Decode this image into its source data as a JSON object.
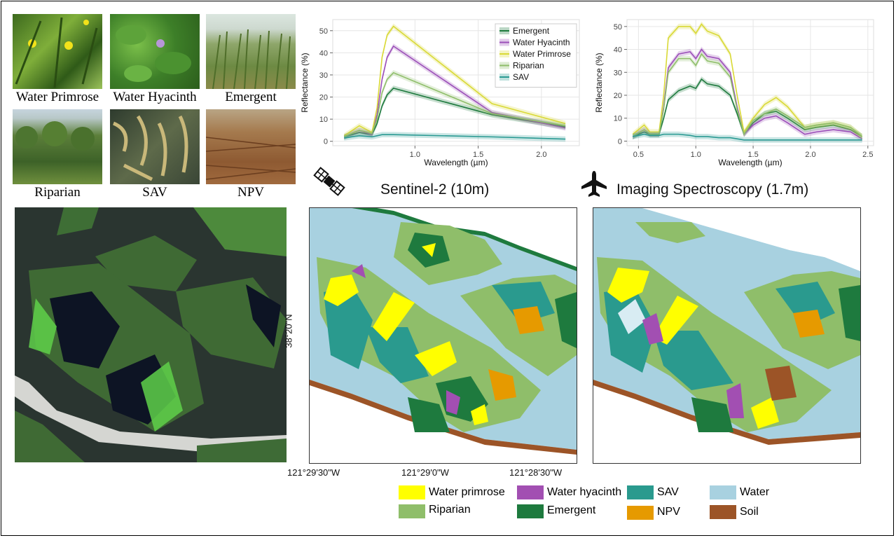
{
  "photos": [
    {
      "label": "Water Primrose"
    },
    {
      "label": "Water Hyacinth"
    },
    {
      "label": "Emergent"
    },
    {
      "label": "Riparian"
    },
    {
      "label": "SAV"
    },
    {
      "label": "NPV"
    }
  ],
  "charts": {
    "chart_data": [
      {
        "type": "line",
        "xlabel": "Wavelength (µm)",
        "ylabel": "Reflectance (%)",
        "xlim": [
          0.35,
          2.3
        ],
        "ylim": [
          -2,
          55
        ],
        "xticks": [
          "1.0",
          "1.5",
          "2.0"
        ],
        "yticks": [
          "0",
          "10",
          "20",
          "30",
          "40",
          "50"
        ],
        "x": [
          0.44,
          0.56,
          0.66,
          0.7,
          0.74,
          0.78,
          0.83,
          1.61,
          2.19
        ],
        "legend_position": "top-right",
        "series": [
          {
            "name": "Emergent",
            "color": "#1e7a3e",
            "values": [
              2,
              4,
              3,
              8,
              16,
              21,
              24,
              12,
              6.5
            ]
          },
          {
            "name": "Water Hyacinth",
            "color": "#9b4fb8",
            "values": [
              2,
              5,
              3,
              12,
              28,
              38,
              43,
              13,
              6
            ]
          },
          {
            "name": "Water Primrose",
            "color": "#d9d936",
            "values": [
              2.5,
              7,
              4,
              15,
              38,
              48,
              52,
              17,
              8
            ]
          },
          {
            "name": "Riparian",
            "color": "#8fbe6a",
            "values": [
              2,
              5,
              3.5,
              10,
              22,
              28,
              31,
              12.5,
              7
            ]
          },
          {
            "name": "SAV",
            "color": "#2a9a93",
            "values": [
              1.5,
              2.5,
              2,
              2.5,
              3,
              3,
              3,
              2,
              1
            ]
          }
        ]
      },
      {
        "type": "line",
        "xlabel": "Wavelength (µm)",
        "ylabel": "Reflectance (%)",
        "xlim": [
          0.4,
          2.55
        ],
        "ylim": [
          -2,
          53
        ],
        "xticks": [
          "0.5",
          "1.0",
          "1.5",
          "2.0",
          "2.5"
        ],
        "yticks": [
          "0",
          "10",
          "20",
          "30",
          "40",
          "50"
        ],
        "x": [
          0.45,
          0.55,
          0.6,
          0.68,
          0.72,
          0.76,
          0.85,
          0.95,
          1.0,
          1.05,
          1.1,
          1.2,
          1.3,
          1.36,
          1.42,
          1.5,
          1.6,
          1.7,
          1.8,
          1.95,
          2.05,
          2.2,
          2.35,
          2.45
        ],
        "series": [
          {
            "color": "#1e7a3e",
            "values": [
              2,
              4,
              3,
              3,
              10,
              18,
              22,
              24,
              23,
              27,
              25,
              24,
              20,
              12,
              3,
              8,
              12,
              13,
              10,
              5,
              6,
              7,
              5,
              2
            ]
          },
          {
            "color": "#9b4fb8",
            "values": [
              2,
              5,
              3,
              3,
              15,
              32,
              38,
              39,
              36,
              40,
              37,
              36,
              30,
              15,
              3,
              7,
              10,
              11,
              8,
              3,
              4,
              5,
              4,
              1
            ]
          },
          {
            "color": "#d9d936",
            "values": [
              3,
              7,
              4,
              4,
              20,
              45,
              50,
              50,
              47,
              51,
              48,
              46,
              38,
              20,
              4,
              10,
              16,
              19,
              15,
              6,
              7,
              8,
              6,
              2
            ]
          },
          {
            "color": "#8fbe6a",
            "values": [
              2,
              5,
              3,
              3,
              14,
              30,
              36,
              36,
              33,
              38,
              35,
              34,
              28,
              14,
              3,
              9,
              12,
              14,
              11,
              6,
              7,
              8,
              6,
              2
            ]
          },
          {
            "color": "#2a9a93",
            "values": [
              2,
              3,
              2.5,
              2.5,
              3,
              3,
              3,
              2.5,
              2,
              2,
              2,
              1.5,
              1.5,
              1,
              0.5,
              0.5,
              0.5,
              0.5,
              0.5,
              0.5,
              0.5,
              0.5,
              0.5,
              0.5
            ]
          }
        ]
      }
    ]
  },
  "maps": {
    "sentinel_title": "Sentinel-2 (10m)",
    "imaging_title": "Imaging Spectroscopy (1.7m)",
    "lat_label": "38°20\"N",
    "lon_labels": [
      "121°29'30\"W",
      "121°29'0\"W",
      "121°28'30\"W"
    ]
  },
  "legend": {
    "items": [
      {
        "label": "Water primrose",
        "color": "#ffff00"
      },
      {
        "label": "Water hyacinth",
        "color": "#a24fb2"
      },
      {
        "label": "SAV",
        "color": "#2a9a8e"
      },
      {
        "label": "Water",
        "color": "#a8d1e0"
      },
      {
        "label": "Riparian",
        "color": "#8fbe6a"
      },
      {
        "label": "Emergent",
        "color": "#1e7a3e"
      },
      {
        "label": "NPV",
        "color": "#e69a00"
      },
      {
        "label": "Soil",
        "color": "#9c5427"
      }
    ]
  }
}
